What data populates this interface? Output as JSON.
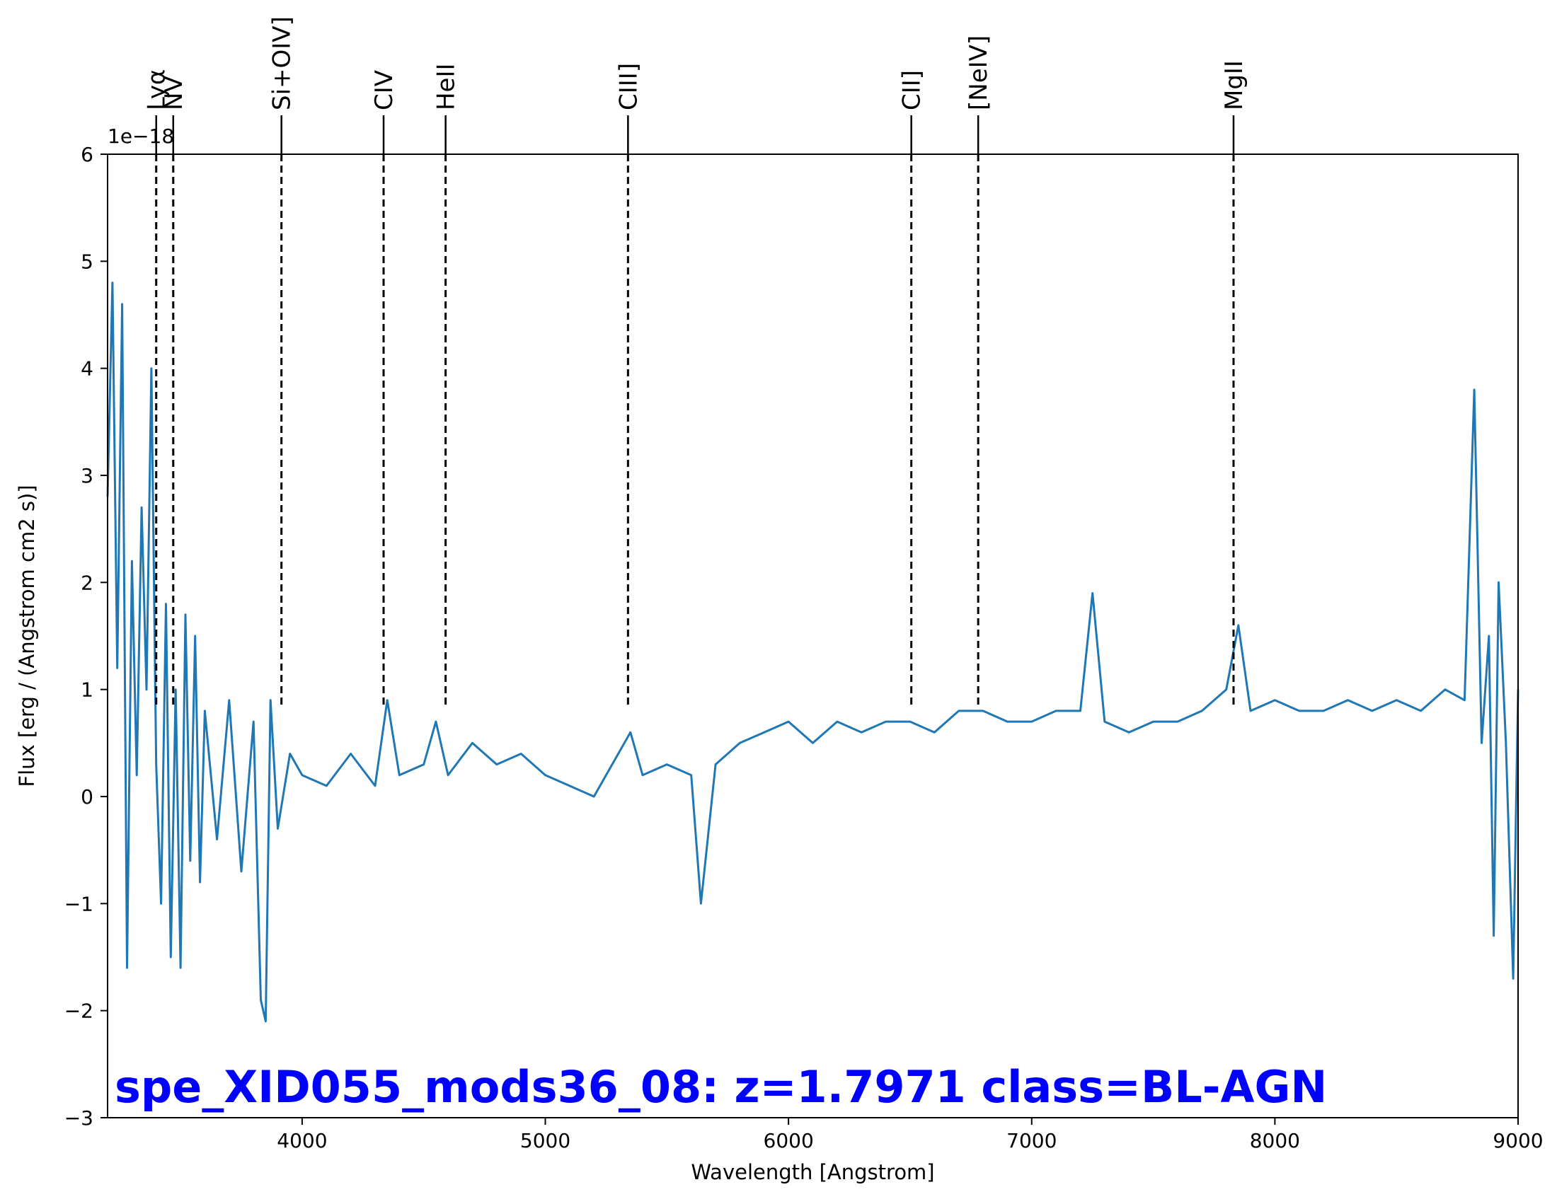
{
  "chart_data": {
    "type": "line",
    "title": "spe_XID055_mods36_08: z=1.7971 class=BL-AGN",
    "xlabel": "Wavelength [Angstrom]",
    "ylabel": "Flux [erg / (Angstrom cm2 s)]",
    "y_offset_label": "1e−18",
    "xlim": [
      3200,
      9000
    ],
    "ylim": [
      -3,
      6
    ],
    "x_ticks": [
      4000,
      5000,
      6000,
      7000,
      8000,
      9000
    ],
    "y_ticks": [
      -3,
      -2,
      -1,
      0,
      1,
      2,
      3,
      4,
      5,
      6
    ],
    "x_tick_labels": [
      "4000",
      "5000",
      "6000",
      "7000",
      "8000",
      "9000"
    ],
    "y_tick_labels": [
      "−3",
      "−2",
      "−1",
      "0",
      "1",
      "2",
      "3",
      "4",
      "5",
      "6"
    ],
    "grid": false,
    "series_color": "#1f77b4",
    "title_color": "#0000ff",
    "series": [
      {
        "x": [
          3200,
          3220,
          3240,
          3260,
          3280,
          3300,
          3320,
          3340,
          3360,
          3380,
          3400,
          3420,
          3440,
          3460,
          3480,
          3500,
          3520,
          3540,
          3560,
          3580,
          3600,
          3650,
          3700,
          3750,
          3800,
          3830,
          3850,
          3870,
          3900,
          3950,
          4000,
          4100,
          4200,
          4300,
          4350,
          4400,
          4500,
          4550,
          4600,
          4700,
          4800,
          4900,
          5000,
          5100,
          5200,
          5300,
          5350,
          5400,
          5500,
          5600,
          5640,
          5700,
          5800,
          5900,
          6000,
          6100,
          6200,
          6300,
          6400,
          6500,
          6600,
          6700,
          6800,
          6900,
          7000,
          7100,
          7200,
          7250,
          7300,
          7400,
          7500,
          7600,
          7700,
          7800,
          7850,
          7900,
          8000,
          8100,
          8200,
          8300,
          8400,
          8500,
          8600,
          8700,
          8780,
          8820,
          8850,
          8880,
          8900,
          8920,
          8950,
          8980,
          9000
        ],
        "y": [
          2.8,
          4.8,
          1.2,
          4.6,
          -1.6,
          2.2,
          0.2,
          2.7,
          1.0,
          4.0,
          0.3,
          -1.0,
          1.8,
          -1.5,
          1.0,
          -1.6,
          1.7,
          -0.6,
          1.5,
          -0.8,
          0.8,
          -0.4,
          0.9,
          -0.7,
          0.7,
          -1.9,
          -2.1,
          0.9,
          -0.3,
          0.4,
          0.2,
          0.1,
          0.4,
          0.1,
          0.9,
          0.2,
          0.3,
          0.7,
          0.2,
          0.5,
          0.3,
          0.4,
          0.2,
          0.1,
          0.0,
          0.4,
          0.6,
          0.2,
          0.3,
          0.2,
          -1.0,
          0.3,
          0.5,
          0.6,
          0.7,
          0.5,
          0.7,
          0.6,
          0.7,
          0.7,
          0.6,
          0.8,
          0.8,
          0.7,
          0.7,
          0.8,
          0.8,
          1.9,
          0.7,
          0.6,
          0.7,
          0.7,
          0.8,
          1.0,
          1.6,
          0.8,
          0.9,
          0.8,
          0.8,
          0.9,
          0.8,
          0.9,
          0.8,
          1.0,
          0.9,
          3.8,
          0.5,
          1.5,
          -1.3,
          2.0,
          0.5,
          -1.7,
          1.0
        ]
      }
    ],
    "lines": [
      {
        "label": "Lyα",
        "x": 3400
      },
      {
        "label": "NV",
        "x": 3470
      },
      {
        "label": "Si+OIV]",
        "x": 3915
      },
      {
        "label": "CIV",
        "x": 4335
      },
      {
        "label": "HeII",
        "x": 4590
      },
      {
        "label": "CIII]",
        "x": 5340
      },
      {
        "label": "CII]",
        "x": 6505
      },
      {
        "label": "[NeIV]",
        "x": 6780
      },
      {
        "label": "MgII",
        "x": 7830
      }
    ]
  }
}
